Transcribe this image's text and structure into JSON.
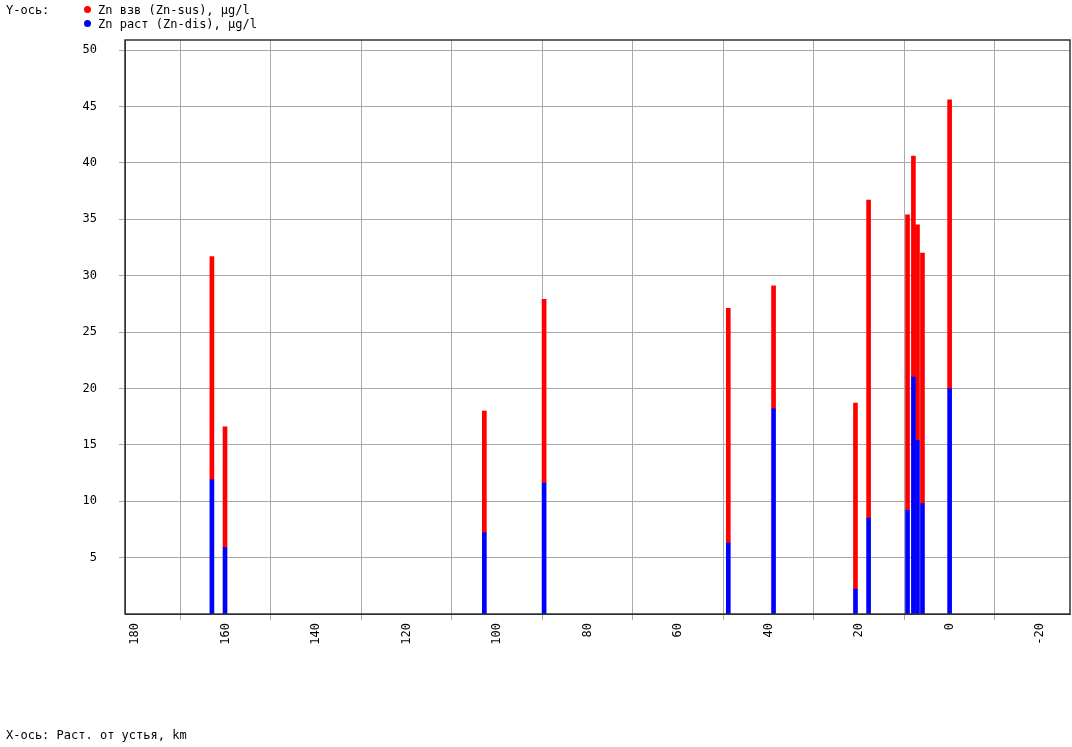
{
  "chart_data": {
    "type": "bar",
    "stacked": true,
    "ylabel": "Y-ось:",
    "annotations": [
      "X-ось: Раст. от устья, km"
    ],
    "x": [
      163.0,
      160.1,
      102.8,
      89.6,
      48.9,
      38.9,
      20.8,
      17.9,
      9.3,
      8.0,
      7.1,
      6.0,
      0
    ],
    "series": [
      {
        "name": "Zn раст (Zn-dis), µg/l",
        "color": "#0000ff",
        "values": [
          11.9,
          5.9,
          7.2,
          11.6,
          6.3,
          18.2,
          2.2,
          8.5,
          9.2,
          21.0,
          15.4,
          9.8,
          20.0
        ]
      },
      {
        "name": "Zn взв (Zn-sus), µg/l",
        "color": "#ff0000",
        "values": [
          19.8,
          10.7,
          10.8,
          16.3,
          20.8,
          10.9,
          16.5,
          28.2,
          26.2,
          19.6,
          19.1,
          22.2,
          25.6
        ]
      }
    ],
    "xlim": [
      182.2,
      -26.6
    ],
    "xticks": [
      180,
      160,
      140,
      120,
      100,
      80,
      60,
      40,
      20,
      0,
      -20
    ],
    "ylim": [
      0,
      50.9
    ],
    "yticks": [
      5,
      10,
      15,
      20,
      25,
      30,
      35,
      40,
      45,
      50
    ],
    "grid": true,
    "legend": "top left"
  }
}
